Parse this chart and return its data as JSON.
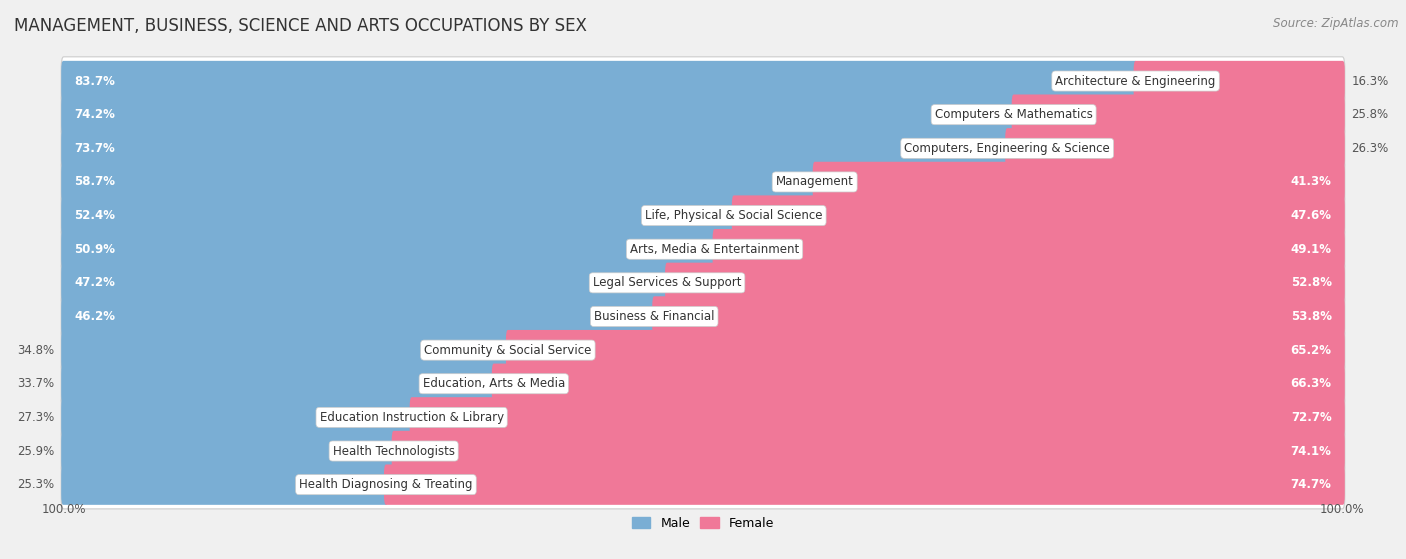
{
  "title": "MANAGEMENT, BUSINESS, SCIENCE AND ARTS OCCUPATIONS BY SEX",
  "source": "Source: ZipAtlas.com",
  "categories": [
    "Architecture & Engineering",
    "Computers & Mathematics",
    "Computers, Engineering & Science",
    "Management",
    "Life, Physical & Social Science",
    "Arts, Media & Entertainment",
    "Legal Services & Support",
    "Business & Financial",
    "Community & Social Service",
    "Education, Arts & Media",
    "Education Instruction & Library",
    "Health Technologists",
    "Health Diagnosing & Treating"
  ],
  "male_pct": [
    83.7,
    74.2,
    73.7,
    58.7,
    52.4,
    50.9,
    47.2,
    46.2,
    34.8,
    33.7,
    27.3,
    25.9,
    25.3
  ],
  "female_pct": [
    16.3,
    25.8,
    26.3,
    41.3,
    47.6,
    49.1,
    52.8,
    53.8,
    65.2,
    66.3,
    72.7,
    74.1,
    74.7
  ],
  "male_color": "#7aaed4",
  "female_color": "#f07898",
  "bg_color": "#f0f0f0",
  "bar_bg_color": "#ffffff",
  "title_fontsize": 12,
  "source_fontsize": 8.5,
  "pct_fontsize": 8.5,
  "cat_fontsize": 8.5,
  "legend_fontsize": 9,
  "axis_tick_fontsize": 8.5
}
